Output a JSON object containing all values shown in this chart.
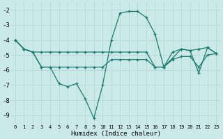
{
  "xlabel": "Humidex (Indice chaleur)",
  "bg_color": "#cce9ea",
  "grid_color": "#b8d8d9",
  "line_color": "#1a7a6e",
  "xlim": [
    -0.5,
    23.5
  ],
  "ylim": [
    -9.6,
    -1.5
  ],
  "yticks": [
    -9,
    -8,
    -7,
    -6,
    -5,
    -4,
    -3,
    -2
  ],
  "xticks": [
    0,
    1,
    2,
    3,
    4,
    5,
    6,
    7,
    8,
    9,
    10,
    11,
    12,
    13,
    14,
    15,
    16,
    17,
    18,
    19,
    20,
    21,
    22,
    23
  ],
  "series": [
    {
      "x": [
        0,
        1,
        2,
        3,
        4,
        5,
        6,
        7,
        8,
        9,
        10,
        11,
        12,
        13,
        14,
        15,
        16,
        17,
        18,
        19,
        20,
        21,
        22,
        23
      ],
      "y": [
        -4.0,
        -4.6,
        -4.8,
        -5.8,
        -5.8,
        -6.9,
        -7.1,
        -6.9,
        -7.9,
        -9.2,
        -7.0,
        -4.0,
        -2.2,
        -2.1,
        -2.1,
        -2.5,
        -3.6,
        -5.8,
        -5.2,
        -4.6,
        -4.7,
        -6.2,
        -4.5,
        -4.9
      ]
    },
    {
      "x": [
        0,
        1,
        2,
        3,
        4,
        5,
        6,
        7,
        8,
        9,
        10,
        11,
        12,
        13,
        14,
        15,
        16,
        17,
        18,
        19,
        20,
        21,
        22,
        23
      ],
      "y": [
        -4.0,
        -4.6,
        -4.8,
        -4.8,
        -4.8,
        -4.8,
        -4.8,
        -4.8,
        -4.8,
        -4.8,
        -4.8,
        -4.8,
        -4.8,
        -4.8,
        -4.8,
        -4.8,
        -5.8,
        -5.8,
        -4.8,
        -4.6,
        -4.7,
        -4.6,
        -4.5,
        -4.9
      ]
    },
    {
      "x": [
        0,
        1,
        2,
        3,
        4,
        5,
        6,
        7,
        8,
        9,
        10,
        11,
        12,
        13,
        14,
        15,
        16,
        17,
        18,
        19,
        20,
        21,
        22,
        23
      ],
      "y": [
        -4.0,
        -4.6,
        -4.8,
        -5.8,
        -5.8,
        -5.8,
        -5.8,
        -5.8,
        -5.8,
        -5.8,
        -5.8,
        -5.3,
        -5.3,
        -5.3,
        -5.3,
        -5.3,
        -5.8,
        -5.8,
        -5.3,
        -5.1,
        -5.1,
        -5.8,
        -5.0,
        -4.9
      ]
    }
  ]
}
